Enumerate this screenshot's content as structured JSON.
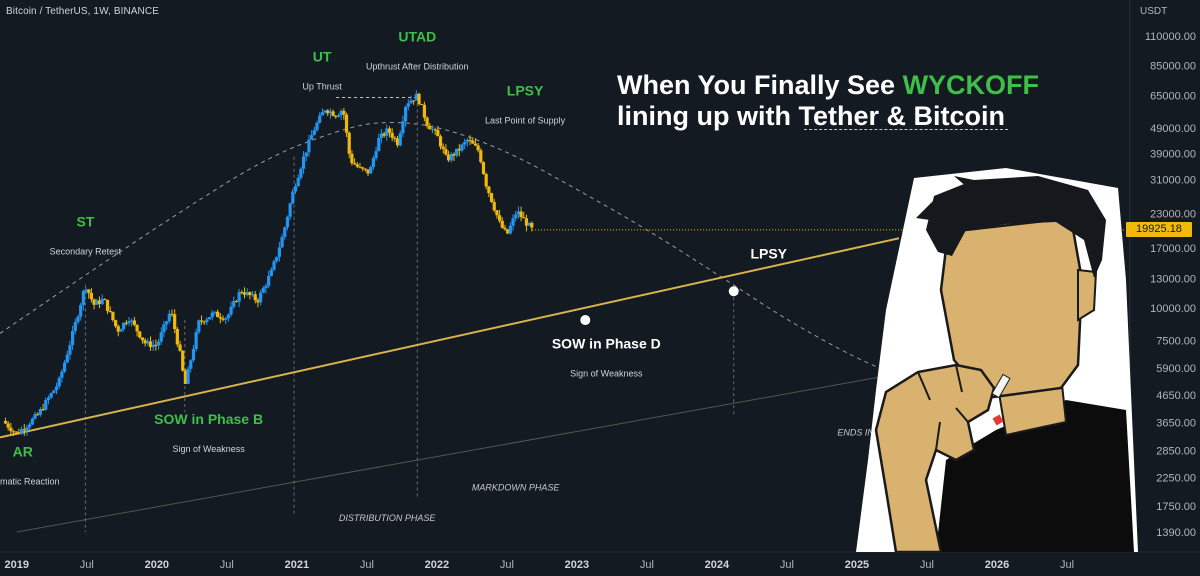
{
  "header": {
    "symbol": "Bitcoin / TetherUS, 1W, BINANCE",
    "axis_currency": "USDT"
  },
  "headline": {
    "line1_prefix": "When You Finally See ",
    "line1_accent": "WYCKOFF",
    "line2_prefix": "lining up with ",
    "line2_underlined": "Tether & Bitcoin"
  },
  "colors": {
    "background": "#131a22",
    "candle_up": "#2196f3",
    "candle_down": "#f0b90b",
    "trendline": "#d9b34c",
    "lower_line": "#4e5a4a",
    "label_green": "#3fbf4a",
    "label_white": "#ffffff",
    "price_tag": "#f0b90b"
  },
  "chart_data": {
    "type": "candlestick",
    "title": "",
    "xlabel": "",
    "ylabel": "USDT",
    "scale": "log",
    "y_ticks": [
      110000,
      85000,
      65000,
      49000,
      39000,
      31000,
      23000,
      17000,
      13000,
      10000,
      7500,
      5900,
      4650,
      3650,
      2850,
      2250,
      1750,
      1390
    ],
    "y_tick_labels": [
      "110000.00",
      "85000.00",
      "65000.00",
      "49000.00",
      "39000.00",
      "31000.00",
      "23000.00",
      "17000.00",
      "13000.00",
      "10000.00",
      "7500.00",
      "5900.00",
      "4650.00",
      "3650.00",
      "2850.00",
      "2250.00",
      "1750.00",
      "1390.00"
    ],
    "x_ticks": [
      "2019",
      "Jul",
      "2020",
      "Jul",
      "2021",
      "Jul",
      "2022",
      "Jul",
      "2023",
      "Jul",
      "2024",
      "Jul",
      "2025",
      "Jul",
      "2026",
      "Jul"
    ],
    "x_tick_dates": [
      2019.0,
      2019.5,
      2020.0,
      2020.5,
      2021.0,
      2021.5,
      2022.0,
      2022.5,
      2023.0,
      2023.5,
      2024.0,
      2024.5,
      2025.0,
      2025.5,
      2026.0,
      2026.5
    ],
    "x_range": [
      2018.88,
      2026.95
    ],
    "last_price": "19925.18",
    "price_path": [
      {
        "date": 2018.9,
        "price": 3700
      },
      {
        "date": 2019.0,
        "price": 3300
      },
      {
        "date": 2019.15,
        "price": 3900
      },
      {
        "date": 2019.3,
        "price": 5200
      },
      {
        "date": 2019.4,
        "price": 8000
      },
      {
        "date": 2019.49,
        "price": 12300
      },
      {
        "date": 2019.55,
        "price": 10300
      },
      {
        "date": 2019.62,
        "price": 10800
      },
      {
        "date": 2019.72,
        "price": 8200
      },
      {
        "date": 2019.8,
        "price": 9200
      },
      {
        "date": 2019.92,
        "price": 7300
      },
      {
        "date": 2020.0,
        "price": 7200
      },
      {
        "date": 2020.1,
        "price": 9800
      },
      {
        "date": 2020.17,
        "price": 6500
      },
      {
        "date": 2020.2,
        "price": 5000
      },
      {
        "date": 2020.3,
        "price": 8800
      },
      {
        "date": 2020.4,
        "price": 9500
      },
      {
        "date": 2020.5,
        "price": 9200
      },
      {
        "date": 2020.6,
        "price": 11700
      },
      {
        "date": 2020.72,
        "price": 10700
      },
      {
        "date": 2020.82,
        "price": 13800
      },
      {
        "date": 2020.9,
        "price": 19000
      },
      {
        "date": 2020.98,
        "price": 29000
      },
      {
        "date": 2021.05,
        "price": 38000
      },
      {
        "date": 2021.12,
        "price": 48000
      },
      {
        "date": 2021.2,
        "price": 58000
      },
      {
        "date": 2021.28,
        "price": 55000
      },
      {
        "date": 2021.33,
        "price": 58000
      },
      {
        "date": 2021.38,
        "price": 37000
      },
      {
        "date": 2021.45,
        "price": 34000
      },
      {
        "date": 2021.52,
        "price": 33000
      },
      {
        "date": 2021.58,
        "price": 44000
      },
      {
        "date": 2021.65,
        "price": 48000
      },
      {
        "date": 2021.72,
        "price": 43000
      },
      {
        "date": 2021.78,
        "price": 61000
      },
      {
        "date": 2021.86,
        "price": 65000
      },
      {
        "date": 2021.93,
        "price": 51000
      },
      {
        "date": 2022.0,
        "price": 46000
      },
      {
        "date": 2022.07,
        "price": 37000
      },
      {
        "date": 2022.15,
        "price": 40000
      },
      {
        "date": 2022.22,
        "price": 44000
      },
      {
        "date": 2022.3,
        "price": 40000
      },
      {
        "date": 2022.35,
        "price": 30000
      },
      {
        "date": 2022.45,
        "price": 21000
      },
      {
        "date": 2022.5,
        "price": 19000
      },
      {
        "date": 2022.57,
        "price": 23500
      },
      {
        "date": 2022.63,
        "price": 21500
      },
      {
        "date": 2022.68,
        "price": 19925
      }
    ],
    "trendline": {
      "from": {
        "date": 2018.88,
        "price": 3200
      },
      "to": {
        "date": 2025.3,
        "price": 18500
      }
    },
    "lower_line": {
      "from": {
        "date": 2019.0,
        "price": 1390
      },
      "to": {
        "date": 2026.9,
        "price": 8000
      }
    },
    "cycle_curve": [
      {
        "date": 2018.88,
        "price": 8000
      },
      {
        "date": 2019.5,
        "price": 13500
      },
      {
        "date": 2020.2,
        "price": 24000
      },
      {
        "date": 2020.8,
        "price": 38000
      },
      {
        "date": 2021.3,
        "price": 48000
      },
      {
        "date": 2021.6,
        "price": 52000
      },
      {
        "date": 2022.0,
        "price": 50000
      },
      {
        "date": 2022.5,
        "price": 40000
      },
      {
        "date": 2023.0,
        "price": 28500
      },
      {
        "date": 2023.5,
        "price": 20000
      },
      {
        "date": 2024.0,
        "price": 13500
      },
      {
        "date": 2024.5,
        "price": 9000
      },
      {
        "date": 2025.0,
        "price": 6400
      },
      {
        "date": 2025.3,
        "price": 5500
      }
    ],
    "utad_range": {
      "from": 2021.28,
      "to": 2021.88,
      "price": 64000
    },
    "points": [
      {
        "date": 2023.06,
        "price": 9000
      },
      {
        "date": 2024.12,
        "price": 11600
      }
    ],
    "vlines": [
      {
        "date": 2019.49,
        "from": 1390,
        "to": 12300
      },
      {
        "date": 2020.2,
        "from": 4000,
        "to": 9000
      },
      {
        "date": 2020.98,
        "from": 1600,
        "to": 38000
      },
      {
        "date": 2021.86,
        "from": 1900,
        "to": 64000
      },
      {
        "date": 2024.12,
        "from": 3900,
        "to": 11600
      }
    ],
    "annotations": [
      {
        "name": "ar-label",
        "label": "AR",
        "sub": "matic Reaction",
        "date": 2018.97,
        "price": 2700,
        "color": "green",
        "anchor": "start",
        "sub_date": 2018.88
      },
      {
        "name": "st-label",
        "label": "ST",
        "sub": "Secondary Retest",
        "date": 2019.49,
        "price": 20500,
        "color": "green",
        "anchor": "middle"
      },
      {
        "name": "sow-b-label",
        "label": "SOW in Phase B",
        "sub": "Sign of Weakness",
        "date": 2020.37,
        "price": 3600,
        "color": "green",
        "anchor": "middle"
      },
      {
        "name": "ut-label",
        "label": "UT",
        "sub": "Up Thrust",
        "date": 2021.18,
        "price": 88000,
        "color": "green",
        "anchor": "middle"
      },
      {
        "name": "utad-label",
        "label": "UTAD",
        "sub": "Upthrust After Distribution",
        "date": 2021.86,
        "price": 105000,
        "color": "green",
        "anchor": "middle"
      },
      {
        "name": "lpsy-top-label",
        "label": "LPSY",
        "sub": "Last Point of Supply",
        "date": 2022.63,
        "price": 65000,
        "color": "green",
        "anchor": "middle"
      },
      {
        "name": "lpsy-right-label",
        "label": "LPSY",
        "sub": "",
        "date": 2024.37,
        "price": 15500,
        "color": "white",
        "anchor": "middle"
      },
      {
        "name": "sow-d-label",
        "label": "SOW in Phase D",
        "sub": "Sign of Weakness",
        "date": 2023.21,
        "price": 7000,
        "color": "white",
        "anchor": "middle"
      }
    ],
    "phase_labels": [
      {
        "name": "distribution-phase-label",
        "text": "DISTRIBUTION PHASE",
        "date": 2021.3,
        "price": 1530
      },
      {
        "name": "markdown-phase-label",
        "text": "MARKDOWN PHASE",
        "date": 2022.25,
        "price": 2000
      },
      {
        "name": "ends-accumulation-label",
        "text": "ENDS INTO NEW ACCUMULATION",
        "date": 2024.86,
        "price": 3250
      }
    ]
  }
}
